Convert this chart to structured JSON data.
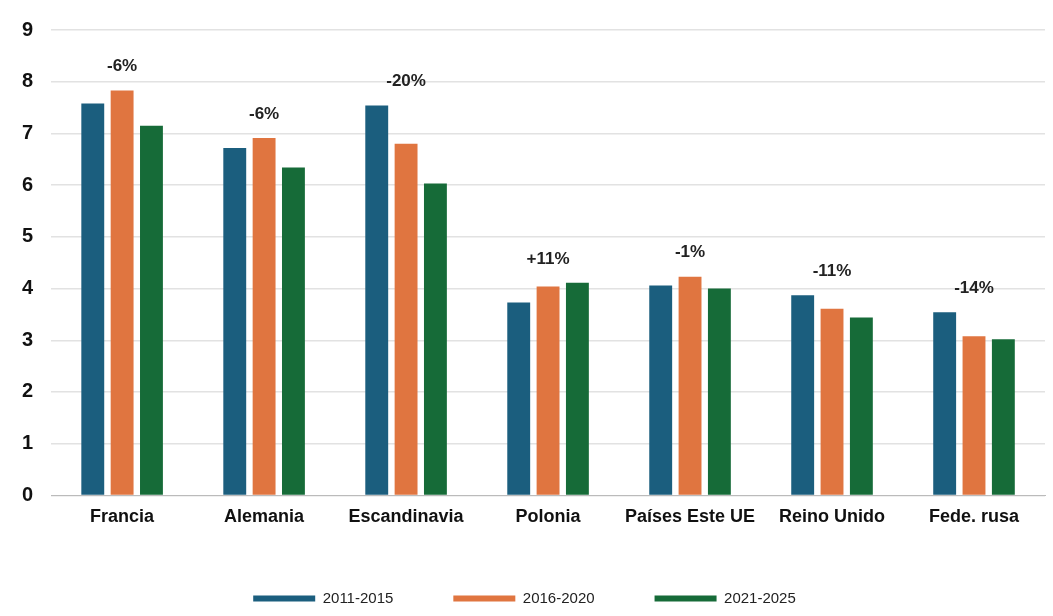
{
  "chart_data": {
    "type": "bar",
    "categories": [
      "Francia",
      "Alemania",
      "Escandinavia",
      "Polonia",
      "Países Este UE",
      "Reino Unido",
      "Fede. rusa"
    ],
    "series": [
      {
        "name": "2011-2015",
        "color": "#1b5e7e",
        "values": [
          7.58,
          6.72,
          7.54,
          3.73,
          4.06,
          3.87,
          3.54
        ]
      },
      {
        "name": "2016-2020",
        "color": "#e07540",
        "values": [
          7.83,
          6.91,
          6.8,
          4.04,
          4.23,
          3.61,
          3.08
        ]
      },
      {
        "name": "2021-2025",
        "color": "#166b38",
        "values": [
          7.15,
          6.34,
          6.03,
          4.11,
          4.0,
          3.44,
          3.02
        ]
      }
    ],
    "annotations": [
      "-6%",
      "-6%",
      "-20%",
      "+11%",
      "-1%",
      "-11%",
      "-14%"
    ],
    "ylim": [
      0,
      9
    ],
    "yticks": [
      0,
      1,
      2,
      3,
      4,
      5,
      6,
      7,
      8,
      9
    ],
    "grid": "y",
    "legend": "bottom"
  }
}
